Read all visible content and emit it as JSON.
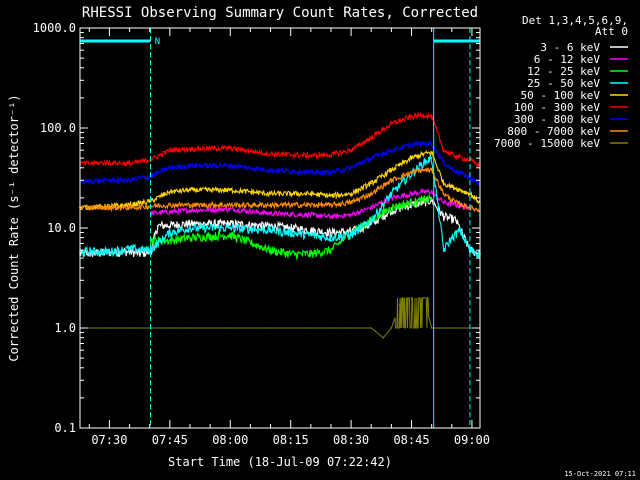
{
  "chart_data": {
    "type": "line",
    "title": "RHESSI Observing Summary Count Rates, Corrected",
    "xlabel": "Start Time (18-Jul-09 07:22:42)",
    "ylabel": "Corrected Count Rate (s⁻¹ detector⁻¹)",
    "yscale": "log",
    "ylim": [
      0.1,
      1000
    ],
    "xlim_min": [
      442.7,
      542
    ],
    "yticks": [
      {
        "label": "0.1",
        "value": 0.1
      },
      {
        "label": "1.0",
        "value": 1
      },
      {
        "label": "10.0",
        "value": 10
      },
      {
        "label": "100.0",
        "value": 100
      },
      {
        "label": "1000.0",
        "value": 1000
      }
    ],
    "xticks": [
      {
        "label": "07:30",
        "value": 450
      },
      {
        "label": "07:45",
        "value": 465
      },
      {
        "label": "08:00",
        "value": 480
      },
      {
        "label": "08:15",
        "value": 495
      },
      {
        "label": "08:30",
        "value": 510
      },
      {
        "label": "08:45",
        "value": 525
      },
      {
        "label": "09:00",
        "value": 540
      }
    ],
    "legend_header": [
      "Det 1,3,4,5,6,9,",
      "Att 0"
    ],
    "night_intervals": [
      [
        442.7,
        460.2
      ],
      [
        530.5,
        542
      ]
    ],
    "night_marker": "N",
    "saa_boundaries": [
      442.7,
      460.2,
      530.5,
      539.5
    ],
    "series": [
      {
        "name": "3 - 6 keV",
        "color": "#ffffff",
        "x": [
          442.7,
          455,
          457.5,
          460.2,
          462,
          470,
          480,
          490,
          500,
          505,
          510,
          515,
          520,
          525,
          528,
          530,
          533,
          536,
          539.5,
          542
        ],
        "values": [
          5.5,
          5.8,
          5.5,
          5.8,
          10.5,
          11,
          11,
          10.5,
          9.5,
          9,
          9.2,
          11,
          15,
          17,
          18,
          19,
          13,
          12,
          6,
          5.5
        ]
      },
      {
        "name": "6 - 12 keV",
        "color": "#ff00ff",
        "x": [
          460.2,
          470,
          480,
          490,
          500,
          505,
          510,
          515,
          520,
          525,
          528,
          530,
          533,
          536,
          539.5
        ],
        "values": [
          14,
          15,
          15.5,
          14,
          13.5,
          13,
          13.5,
          16,
          20,
          22,
          23,
          23,
          18,
          17,
          16
        ]
      },
      {
        "name": "12 - 25 keV",
        "color": "#00ff00",
        "x": [
          460.2,
          465,
          470,
          480,
          490,
          495,
          500,
          505,
          510,
          515,
          520,
          525,
          528,
          530
        ],
        "values": [
          7.5,
          7.5,
          8,
          8.5,
          6,
          5.5,
          5.5,
          6,
          9,
          12,
          16,
          18,
          19,
          20
        ]
      },
      {
        "name": "25 - 50 keV",
        "color": "#00ffff",
        "x": [
          442.7,
          450,
          455,
          460.2,
          465,
          470,
          480,
          490,
          500,
          505,
          510,
          515,
          520,
          525,
          528,
          530,
          533,
          535,
          537,
          539.5,
          542
        ],
        "values": [
          5.8,
          5.8,
          6.2,
          6,
          9,
          10,
          10,
          9.5,
          8.5,
          8,
          8.5,
          12,
          22,
          35,
          45,
          50,
          6,
          8,
          9.5,
          6,
          5.5
        ]
      },
      {
        "name": "50 - 100 keV",
        "color": "#ffd700",
        "x": [
          442.7,
          450,
          455,
          460.2,
          465,
          470,
          480,
          490,
          500,
          505,
          510,
          515,
          520,
          525,
          528,
          530,
          533,
          536,
          539.5,
          542
        ],
        "values": [
          16,
          16.5,
          17,
          18.5,
          23,
          24,
          24,
          22,
          22,
          21,
          22,
          28,
          38,
          50,
          55,
          57,
          28,
          25,
          22,
          18
        ]
      },
      {
        "name": "100 - 300 keV",
        "color": "#ff0000",
        "x": [
          442.7,
          450,
          455,
          460.2,
          465,
          470,
          480,
          490,
          500,
          505,
          510,
          515,
          520,
          525,
          528,
          530,
          533,
          536,
          539.5,
          542
        ],
        "values": [
          44,
          45,
          44,
          48,
          60,
          62,
          63,
          55,
          53,
          54,
          60,
          80,
          110,
          130,
          135,
          130,
          60,
          52,
          48,
          42
        ]
      },
      {
        "name": "300 - 800 keV",
        "color": "#0000ff",
        "x": [
          442.7,
          450,
          455,
          460.2,
          465,
          470,
          480,
          490,
          500,
          505,
          510,
          515,
          520,
          525,
          528,
          530,
          533,
          536,
          539.5,
          542
        ],
        "values": [
          29,
          30,
          30,
          33,
          40,
          42,
          42,
          38,
          36,
          36,
          40,
          50,
          60,
          68,
          70,
          70,
          45,
          37,
          32,
          27
        ]
      },
      {
        "name": "800 - 7000 keV",
        "color": "#ff8c00",
        "x": [
          442.7,
          450,
          455,
          460.2,
          465,
          470,
          480,
          490,
          500,
          505,
          510,
          515,
          520,
          525,
          528,
          530,
          533,
          536,
          539.5,
          542
        ],
        "values": [
          16,
          16,
          16,
          16.5,
          17,
          17,
          17,
          17,
          17,
          17,
          18,
          22,
          30,
          36,
          38,
          38,
          22,
          18,
          16,
          15
        ]
      },
      {
        "name": "7000 - 15000 keV",
        "color": "#808000",
        "x": [
          442.7,
          450,
          455,
          460.2,
          465,
          470,
          480,
          490,
          500,
          505,
          510,
          515,
          518,
          520,
          522,
          525,
          528,
          530,
          532,
          535,
          539.5,
          542
        ],
        "values": [
          1,
          1,
          1,
          1,
          1,
          1,
          1,
          1,
          1,
          1,
          1,
          1,
          0.8,
          1,
          1.7,
          2,
          2,
          1,
          1,
          1,
          1,
          1
        ]
      }
    ]
  },
  "footer": {
    "timestamp": "15-Oct-2021 07:11"
  }
}
